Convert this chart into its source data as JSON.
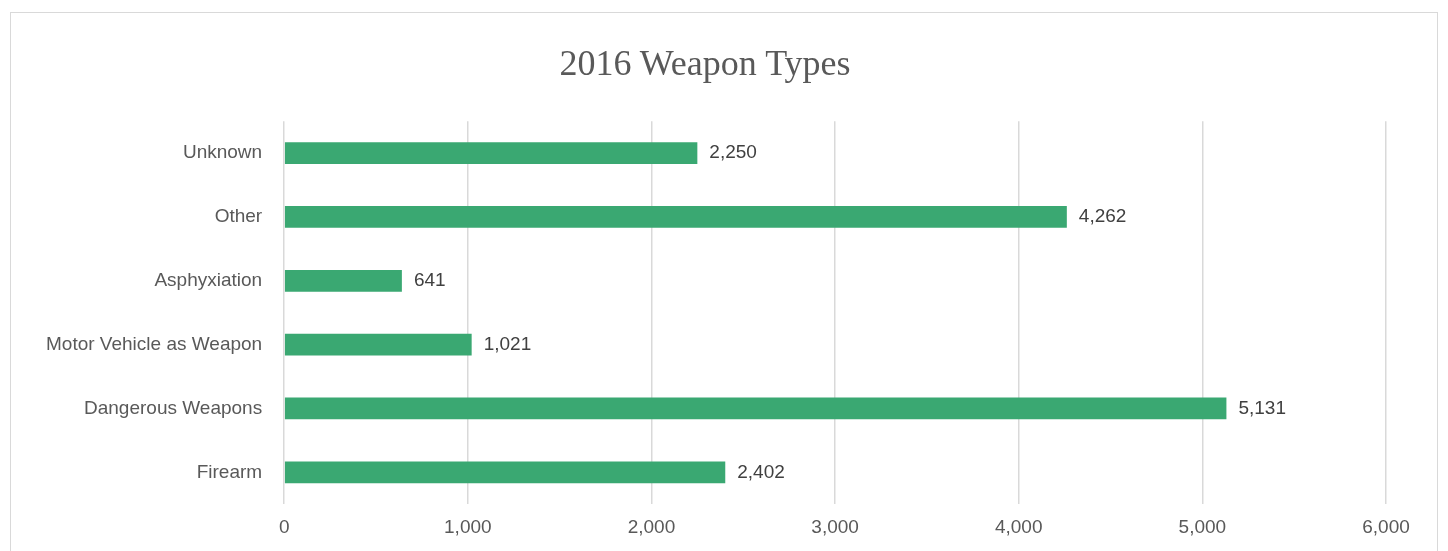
{
  "chart_data": {
    "type": "bar",
    "orientation": "horizontal",
    "title": "2016 Weapon Types",
    "categories": [
      "Unknown",
      "Other",
      "Asphyxiation",
      "Motor Vehicle as Weapon",
      "Dangerous Weapons",
      "Firearm"
    ],
    "values": [
      2250,
      4262,
      641,
      1021,
      5131,
      2402
    ],
    "value_labels": [
      "2,250",
      "4,262",
      "641",
      "1,021",
      "5,131",
      "2,402"
    ],
    "color": "#3aa872",
    "xlim": [
      0,
      6000
    ],
    "xticks": [
      0,
      {
        "value": 1000,
        "label": "1,000"
      },
      {
        "value": 2000,
        "label": "2,000"
      },
      {
        "value": 3000,
        "label": "3,000"
      },
      {
        "value": 4000,
        "label": "4,000"
      },
      {
        "value": 5000,
        "label": "5,000"
      },
      {
        "value": 6000,
        "label": "6,000"
      }
    ],
    "grid": "x",
    "legend": false
  }
}
